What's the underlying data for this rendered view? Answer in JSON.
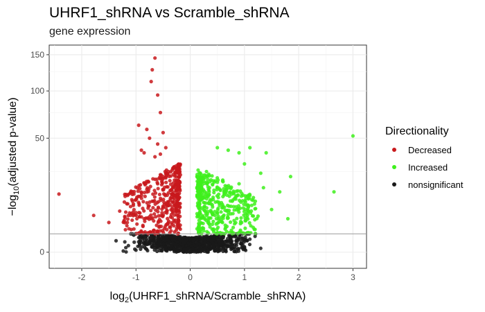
{
  "chart_data": {
    "type": "scatter",
    "title": "UHRF1_shRNA vs Scramble_shRNA",
    "subtitle": "gene expression",
    "xlabel": {
      "prefix": "log",
      "sub": "2",
      "text": "(UHRF1_shRNA/Scramble_shRNA)"
    },
    "ylabel": {
      "prefix": "−log",
      "sub": "10",
      "text": "(adjusted p-value)"
    },
    "xlim": [
      -2.6,
      3.25
    ],
    "x_ticks": [
      -2,
      -1,
      0,
      1,
      2,
      3
    ],
    "x_tick_labels": [
      "-2",
      "-1",
      "0",
      "1",
      "2",
      "3"
    ],
    "y_scale": "sqrt",
    "ylim": [
      -1,
      165
    ],
    "y_ticks": [
      0,
      50,
      100,
      150
    ],
    "y_tick_labels": [
      "0",
      "50",
      "100",
      "150"
    ],
    "significance_threshold_y": 1.3,
    "grid": true,
    "legend": {
      "title": "Directionality",
      "position": "right",
      "entries": [
        "Decreased",
        "Increased",
        "nonsignificant"
      ]
    },
    "series": [
      {
        "name": "Decreased",
        "color": "#c8191c",
        "points": [
          [
            -0.65,
            145
          ],
          [
            -0.7,
            128
          ],
          [
            -0.72,
            112
          ],
          [
            -0.6,
            95
          ],
          [
            -0.55,
            75
          ],
          [
            -0.95,
            62
          ],
          [
            -0.8,
            58
          ],
          [
            -0.5,
            55
          ],
          [
            -0.75,
            50
          ],
          [
            -0.6,
            45
          ],
          [
            -0.45,
            42
          ],
          [
            -0.9,
            40
          ],
          [
            -0.85,
            38
          ],
          [
            -0.55,
            37
          ],
          [
            -0.65,
            35
          ],
          [
            -2.42,
            13
          ],
          [
            -1.78,
            5.2
          ],
          [
            -1.5,
            3.4
          ],
          [
            -1.2,
            12
          ],
          [
            -1.1,
            8
          ],
          [
            -1.0,
            6
          ],
          [
            -0.9,
            4.8
          ],
          [
            -0.7,
            10
          ],
          [
            -0.6,
            18
          ],
          [
            -0.5,
            22
          ],
          [
            -0.4,
            25
          ],
          [
            -0.35,
            15
          ],
          [
            -0.3,
            9
          ],
          [
            -1.3,
            6.5
          ],
          [
            -1.15,
            4.2
          ]
        ],
        "generated": {
          "count": 420,
          "x_range": [
            -1.2,
            -0.18
          ],
          "y_range": [
            1.3,
            30
          ],
          "seed": 11
        }
      },
      {
        "name": "Increased",
        "color": "#3ef01c",
        "points": [
          [
            3.0,
            52
          ],
          [
            1.85,
            22
          ],
          [
            2.65,
            14
          ],
          [
            1.65,
            14
          ],
          [
            1.8,
            4.3
          ],
          [
            1.1,
            42
          ],
          [
            0.9,
            38
          ],
          [
            0.5,
            42
          ],
          [
            0.7,
            40
          ],
          [
            1.4,
            38
          ],
          [
            1.0,
            30
          ],
          [
            1.3,
            24
          ],
          [
            0.3,
            25
          ],
          [
            0.6,
            20
          ],
          [
            1.2,
            10
          ],
          [
            0.8,
            8
          ],
          [
            0.4,
            6
          ],
          [
            1.5,
            7
          ],
          [
            1.35,
            16
          ],
          [
            0.55,
            15
          ],
          [
            0.9,
            18
          ],
          [
            1.05,
            12
          ],
          [
            1.25,
            5
          ],
          [
            0.7,
            4.5
          ],
          [
            0.35,
            14
          ]
        ],
        "generated": {
          "count": 430,
          "x_range": [
            0.12,
            1.2
          ],
          "y_range": [
            1.3,
            26
          ],
          "seed": 23
        }
      },
      {
        "name": "nonsignificant",
        "color": "#1a1a1a",
        "points": [
          [
            0.88,
            0.55
          ],
          [
            -0.85,
            1.0
          ],
          [
            -0.5,
            0.25
          ],
          [
            0.55,
            0.6
          ]
        ],
        "generated": {
          "count": 900,
          "x_range": [
            -0.9,
            0.95
          ],
          "y_range": [
            0,
            1.29
          ],
          "seed": 37
        }
      }
    ]
  }
}
